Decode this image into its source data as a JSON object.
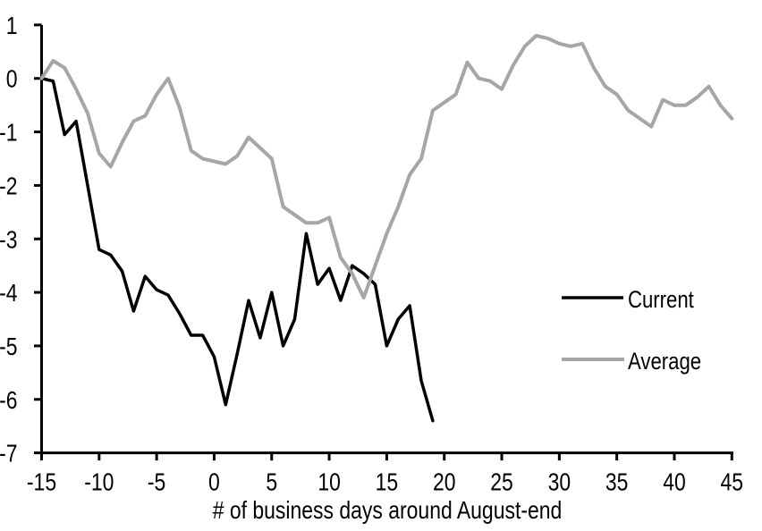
{
  "chart_data": {
    "type": "line",
    "title": "",
    "xlabel": "# of business days around August-end",
    "ylabel": "",
    "xlim": [
      -15,
      45
    ],
    "ylim": [
      -7,
      1
    ],
    "x_ticks": [
      -15,
      -10,
      -5,
      0,
      5,
      10,
      15,
      20,
      25,
      30,
      35,
      40,
      45
    ],
    "y_ticks": [
      1,
      0,
      -1,
      -2,
      -3,
      -4,
      -5,
      -6,
      -7
    ],
    "grid": false,
    "legend_position": "center-right",
    "background_color": "#ffffff",
    "axis_color": "#000000",
    "series": [
      {
        "name": "Current",
        "color": "#000000",
        "line_width": 3.5,
        "x": [
          -15,
          -14,
          -13,
          -12,
          -11,
          -10,
          -9,
          -8,
          -7,
          -6,
          -5,
          -4,
          -3,
          -2,
          -1,
          0,
          1,
          2,
          3,
          4,
          5,
          6,
          7,
          8,
          9,
          10,
          11,
          12,
          13,
          14,
          15,
          16,
          17,
          18,
          19
        ],
        "values": [
          0,
          -0.05,
          -1.05,
          -0.8,
          -2,
          -3.2,
          -3.3,
          -3.6,
          -4.35,
          -3.7,
          -3.95,
          -4.05,
          -4.4,
          -4.8,
          -4.8,
          -5.2,
          -6.1,
          -5.15,
          -4.15,
          -4.85,
          -4,
          -5,
          -4.5,
          -2.9,
          -3.85,
          -3.55,
          -4.15,
          -3.5,
          -3.65,
          -3.85,
          -5,
          -4.5,
          -4.25,
          -5.65,
          -6.4
        ]
      },
      {
        "name": "Average",
        "color": "#a6a6a6",
        "line_width": 4,
        "x": [
          -15,
          -14,
          -13,
          -12,
          -11,
          -10,
          -9,
          -8,
          -7,
          -6,
          -5,
          -4,
          -3,
          -2,
          -1,
          0,
          1,
          2,
          3,
          4,
          5,
          6,
          7,
          8,
          9,
          10,
          11,
          12,
          13,
          14,
          15,
          16,
          17,
          18,
          19,
          20,
          21,
          22,
          23,
          24,
          25,
          26,
          27,
          28,
          29,
          30,
          31,
          32,
          33,
          34,
          35,
          36,
          37,
          38,
          39,
          40,
          41,
          42,
          43,
          44,
          45
        ],
        "values": [
          0,
          0.33,
          0.2,
          -0.2,
          -0.65,
          -1.4,
          -1.65,
          -1.2,
          -0.8,
          -0.7,
          -0.3,
          0,
          -0.55,
          -1.35,
          -1.5,
          -1.55,
          -1.6,
          -1.45,
          -1.1,
          -1.3,
          -1.5,
          -2.4,
          -2.55,
          -2.7,
          -2.7,
          -2.6,
          -3.35,
          -3.65,
          -4.1,
          -3.5,
          -2.9,
          -2.4,
          -1.8,
          -1.5,
          -0.6,
          -0.45,
          -0.3,
          0.3,
          0,
          -0.05,
          -0.2,
          0.25,
          0.6,
          0.8,
          0.75,
          0.65,
          0.6,
          0.65,
          0.2,
          -0.15,
          -0.3,
          -0.6,
          -0.75,
          -0.9,
          -0.4,
          -0.5,
          -0.5,
          -0.35,
          -0.15,
          -0.5,
          -0.75
        ]
      }
    ]
  }
}
